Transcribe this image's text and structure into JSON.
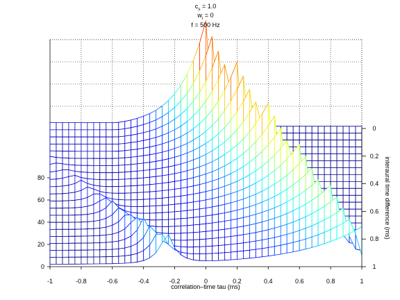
{
  "chart_data": {
    "type": "surface",
    "title_lines": [
      {
        "base": "c",
        "sub": "s",
        "rest": " = 1.0"
      },
      {
        "base": "w",
        "sub": "i",
        "rest": " = 0"
      },
      {
        "base": "f = 500 Hz",
        "sub": "",
        "rest": ""
      }
    ],
    "xlabel": "correlation–time tau (ms)",
    "ylabel": "interaural time difference (ms)",
    "xlim": [
      -1,
      1
    ],
    "ylim": [
      0,
      1
    ],
    "zlim": [
      0,
      140
    ],
    "x_ticks": [
      "-1",
      "-0.8",
      "-0.6",
      "-0.4",
      "-0.2",
      "0",
      "0.2",
      "0.4",
      "0.6",
      "0.8",
      "1"
    ],
    "x_tick_values": [
      -1,
      -0.8,
      -0.6,
      -0.4,
      -0.2,
      0,
      0.2,
      0.4,
      0.6,
      0.8,
      1
    ],
    "y_ticks": [
      "0",
      "0.2",
      "0.4",
      "0.6",
      "0.8",
      "1"
    ],
    "y_tick_values": [
      0,
      0.2,
      0.4,
      0.6,
      0.8,
      1
    ],
    "z_ticks": [
      "0",
      "20",
      "40",
      "60",
      "80"
    ],
    "z_tick_values": [
      0,
      20,
      40,
      60,
      80
    ],
    "grid": true,
    "colormap": [
      "#00008f",
      "#0000ff",
      "#0080ff",
      "#00ffff",
      "#80ff80",
      "#ffff00",
      "#ff8000",
      "#ff0000",
      "#800000"
    ],
    "surface_function": {
      "description": "peak at tau = itd with height falling as itd grows; secondary lobe at tau = itd - 1.25",
      "peak_at_itd0": 95,
      "peak_at_itd1": 34,
      "side_lobe_height": 30,
      "baseline": 2
    }
  }
}
